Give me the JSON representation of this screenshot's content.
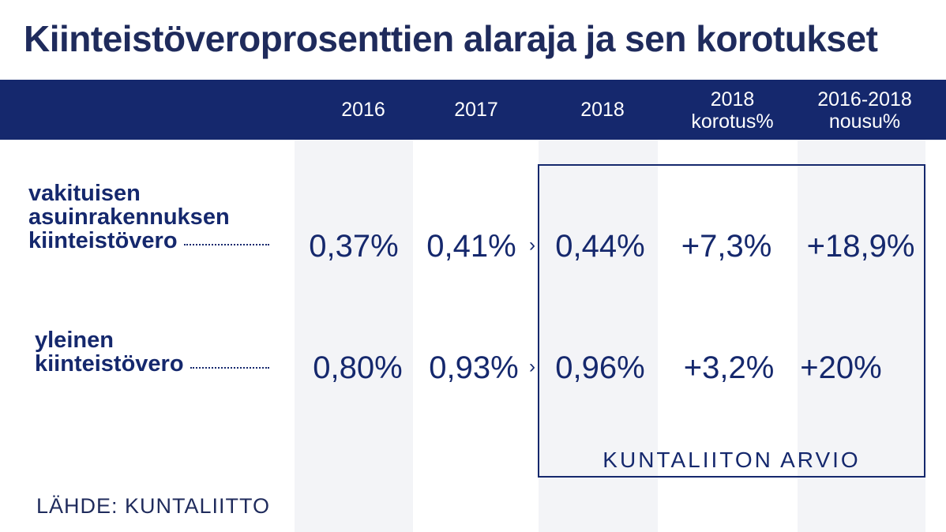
{
  "title": "Kiinteistöveroprosenttien alaraja ja sen korotukset",
  "colors": {
    "header_bar": "#15286d",
    "text": "#15286d",
    "column_band": "#f3f4f7"
  },
  "headers": {
    "c2016": "2016",
    "c2017": "2017",
    "c2018": "2018",
    "korotus_line1": "2018",
    "korotus_line2": "korotus%",
    "nousu_line1": "2016-2018",
    "nousu_line2": "nousu%"
  },
  "rows": [
    {
      "label_lines": [
        "vakituisen",
        "asuinrakennuksen",
        "kiinteistövero"
      ],
      "v2016": "0,37%",
      "v2017": "0,41%",
      "v2018": "0,44%",
      "korotus": "+7,3%",
      "nousu": "+18,9%"
    },
    {
      "label_lines": [
        "yleinen",
        "kiinteistövero"
      ],
      "v2016": "0,80%",
      "v2017": "0,93%",
      "v2018": "0,96%",
      "korotus": "+3,2%",
      "nousu": "+20%"
    }
  ],
  "arrow_glyph": "›",
  "box_label": "KUNTALIITON ARVIO",
  "source": "LÄHDE: KUNTALIITTO",
  "chart_data": {
    "type": "table",
    "title": "Kiinteistöveroprosenttien alaraja ja sen korotukset",
    "columns": [
      "2016",
      "2017",
      "2018",
      "2018 korotus%",
      "2016-2018 nousu%"
    ],
    "rows": [
      {
        "name": "vakituisen asuinrakennuksen kiinteistövero",
        "values": [
          "0,37%",
          "0,41%",
          "0,44%",
          "+7,3%",
          "+18,9%"
        ]
      },
      {
        "name": "yleinen kiinteistövero",
        "values": [
          "0,80%",
          "0,93%",
          "0,96%",
          "+3,2%",
          "+20%"
        ]
      }
    ],
    "annotation": "KUNTALIITON ARVIO",
    "source": "LÄHDE: KUNTALIITTO"
  }
}
